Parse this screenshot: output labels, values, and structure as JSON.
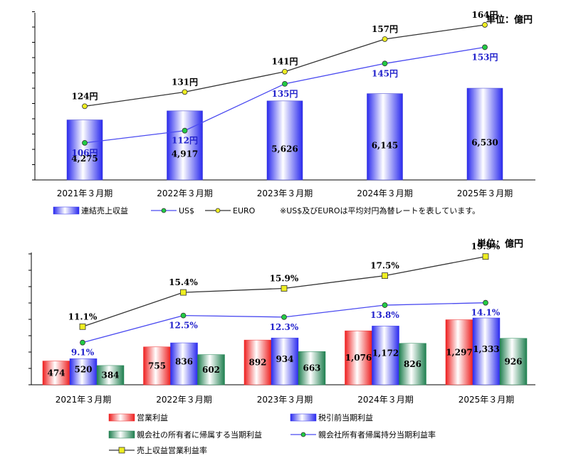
{
  "chart_data": [
    {
      "type": "bar",
      "unit": "単位：億円",
      "categories": [
        "2021年３月期",
        "2022年３月期",
        "2023年３月期",
        "2024年３月期",
        "2025年３月期"
      ],
      "series": [
        {
          "name": "連結売上収益",
          "kind": "bar",
          "values": [
            4275,
            4917,
            5626,
            6145,
            6530
          ],
          "labels": [
            "4,275",
            "4,917",
            "5,626",
            "6,145",
            "6,530"
          ],
          "color": "#3333ee"
        },
        {
          "name": "US$",
          "kind": "line",
          "values": [
            106,
            112,
            135,
            145,
            153
          ],
          "labels": [
            "106円",
            "112円",
            "135円",
            "145円",
            "153円"
          ],
          "color": "#4a4af0",
          "marker": "#22cc44"
        },
        {
          "name": "EURO",
          "kind": "line",
          "values": [
            124,
            131,
            141,
            157,
            164
          ],
          "labels": [
            "124円",
            "131円",
            "141円",
            "157円",
            "164円"
          ],
          "color": "#333333",
          "marker": "#eeee22"
        }
      ],
      "note": "※US$及びEUROは平均対円為替レートを表しています。"
    },
    {
      "type": "bar",
      "unit": "単位：億円",
      "categories": [
        "2021年３月期",
        "2022年３月期",
        "2023年３月期",
        "2024年３月期",
        "2025年３月期"
      ],
      "series": [
        {
          "name": "営業利益",
          "kind": "bar",
          "values": [
            474,
            755,
            892,
            1076,
            1297
          ],
          "labels": [
            "474",
            "755",
            "892",
            "1,076",
            "1,297"
          ],
          "color": "#ee2222"
        },
        {
          "name": "税引前当期利益",
          "kind": "bar",
          "values": [
            520,
            836,
            934,
            1172,
            1333
          ],
          "labels": [
            "520",
            "836",
            "934",
            "1,172",
            "1,333"
          ],
          "color": "#3333ee"
        },
        {
          "name": "親会社の所有者に帰属する当期利益",
          "kind": "bar",
          "values": [
            384,
            602,
            663,
            826,
            926
          ],
          "labels": [
            "384",
            "602",
            "663",
            "826",
            "926"
          ],
          "color": "#228855"
        },
        {
          "name": "親会社所有者帰属持分当期利益率",
          "kind": "line",
          "values": [
            9.1,
            12.5,
            12.3,
            13.8,
            14.1
          ],
          "labels": [
            "9.1%",
            "12.5%",
            "12.3%",
            "13.8%",
            "14.1%"
          ],
          "color": "#4a4af0",
          "marker": "#22cc44"
        },
        {
          "name": "売上収益営業利益率",
          "kind": "line",
          "values": [
            11.1,
            15.4,
            15.9,
            17.5,
            19.9
          ],
          "labels": [
            "11.1%",
            "15.4%",
            "15.9%",
            "17.5%",
            "19.9%"
          ],
          "color": "#333333",
          "marker": "#eeee22"
        }
      ]
    }
  ]
}
